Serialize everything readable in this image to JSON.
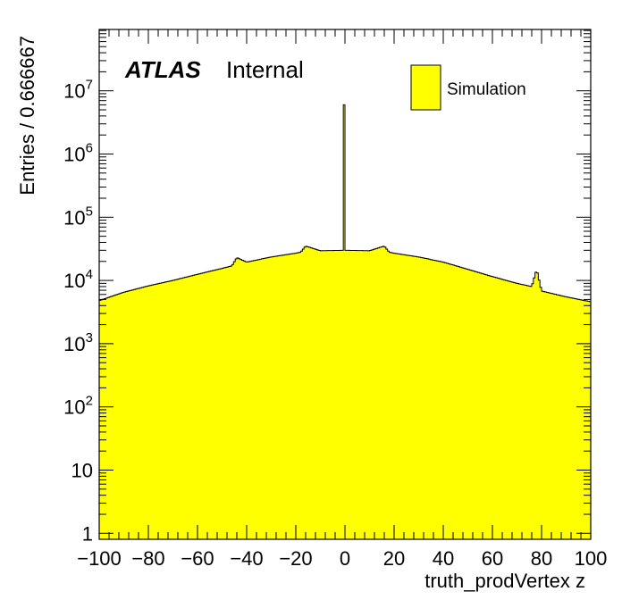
{
  "chart_data": {
    "type": "bar",
    "histogram": true,
    "xlabel": "truth_prodVertex z",
    "ylabel": "Entries / 0.666667",
    "xlim": [
      -100,
      100
    ],
    "ylim": [
      0.8,
      90000000
    ],
    "yscale": "log",
    "x_ticks": [
      "−100",
      "−80",
      "−60",
      "−40",
      "−20",
      "0",
      "20",
      "40",
      "60",
      "80",
      "100"
    ],
    "y_ticks": [
      {
        "base": "1",
        "exp": ""
      },
      {
        "base": "10",
        "exp": ""
      },
      {
        "base": "10",
        "exp": "2"
      },
      {
        "base": "10",
        "exp": "3"
      },
      {
        "base": "10",
        "exp": "4"
      },
      {
        "base": "10",
        "exp": "5"
      },
      {
        "base": "10",
        "exp": "6"
      },
      {
        "base": "10",
        "exp": "7"
      }
    ],
    "bin_width": 0.666667,
    "fill_color": "#ffff00",
    "line_color": "#000000",
    "series": [
      {
        "name": "Simulation",
        "x": [
          -100,
          -90,
          -80,
          -70,
          -60,
          -50,
          -46,
          -44,
          -40,
          -30,
          -20,
          -18,
          -16,
          -10,
          0,
          10,
          16,
          18,
          20,
          30,
          40,
          50,
          60,
          70,
          76,
          78,
          80,
          90,
          100
        ],
        "values": [
          4800,
          6500,
          8200,
          10000,
          12500,
          15500,
          17000,
          23000,
          19500,
          23500,
          27000,
          28000,
          35000,
          29500,
          30000,
          29500,
          35000,
          28000,
          27000,
          23500,
          19500,
          15000,
          11500,
          9000,
          8000,
          15000,
          6800,
          5500,
          4600
        ]
      }
    ],
    "spikes": [
      {
        "x": 0,
        "value": 6000000
      }
    ],
    "labels": {
      "atlas": "ATLAS",
      "internal": "Internal"
    },
    "legend": {
      "entries": [
        "Simulation"
      ],
      "placement": "top-right"
    }
  }
}
